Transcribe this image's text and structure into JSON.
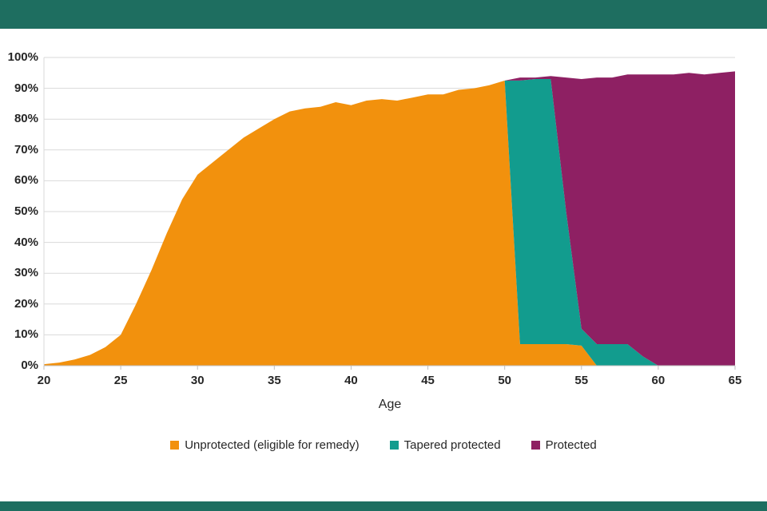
{
  "page": {
    "top_bar_color": "#1E6E60",
    "bottom_bar_color": "#1E6E60",
    "background": "#ffffff",
    "gridline_color": "#d9d9d9",
    "axis_line_color": "#bfbfbf",
    "text_color": "#262626"
  },
  "chart_data": {
    "type": "area",
    "stacked": true,
    "title": "",
    "xlabel": "Age",
    "ylabel": "",
    "xlim": [
      20,
      65
    ],
    "ylim": [
      0,
      100
    ],
    "grid": "horizontal",
    "legend_position": "bottom",
    "x_ticks": [
      20,
      25,
      30,
      35,
      40,
      45,
      50,
      55,
      60,
      65
    ],
    "y_ticks": [
      "0%",
      "10%",
      "20%",
      "30%",
      "40%",
      "50%",
      "60%",
      "70%",
      "80%",
      "90%",
      "100%"
    ],
    "x": [
      20,
      21,
      22,
      23,
      24,
      25,
      26,
      27,
      28,
      29,
      30,
      31,
      32,
      33,
      34,
      35,
      36,
      37,
      38,
      39,
      40,
      41,
      42,
      43,
      44,
      45,
      46,
      47,
      48,
      49,
      50,
      51,
      52,
      53,
      54,
      55,
      56,
      57,
      58,
      59,
      60,
      61,
      62,
      63,
      64,
      65
    ],
    "series": [
      {
        "name": "Unprotected (eligible for remedy)",
        "color": "#F2910D",
        "values": [
          0.5,
          1,
          2,
          3.5,
          6,
          10,
          20,
          31,
          43,
          54,
          62,
          66,
          70,
          74,
          77,
          80,
          82.5,
          83.5,
          84,
          85.5,
          84.5,
          86,
          86.5,
          86,
          87,
          88,
          88,
          89.5,
          90,
          91,
          92.5,
          7,
          7,
          7,
          7,
          6.5,
          0,
          0,
          0,
          0,
          0,
          0,
          0,
          0,
          0,
          0
        ]
      },
      {
        "name": "Tapered protected",
        "color": "#129C8E",
        "values": [
          0,
          0,
          0,
          0,
          0,
          0,
          0,
          0,
          0,
          0,
          0,
          0,
          0,
          0,
          0,
          0,
          0,
          0,
          0,
          0,
          0,
          0,
          0,
          0,
          0,
          0,
          0,
          0,
          0,
          0,
          0,
          85.5,
          86,
          86,
          43,
          5.5,
          7,
          7,
          7,
          3,
          0,
          0,
          0,
          0,
          0,
          0
        ]
      },
      {
        "name": "Protected",
        "color": "#8E2063",
        "values": [
          0,
          0,
          0,
          0,
          0,
          0,
          0,
          0,
          0,
          0,
          0,
          0,
          0,
          0,
          0,
          0,
          0,
          0,
          0,
          0,
          0,
          0,
          0,
          0,
          0,
          0,
          0,
          0,
          0,
          0,
          0,
          1,
          0.5,
          1,
          43.5,
          81,
          86.5,
          86.5,
          87.5,
          91.5,
          94.5,
          94.5,
          95,
          94.5,
          95,
          95.5
        ]
      }
    ]
  }
}
